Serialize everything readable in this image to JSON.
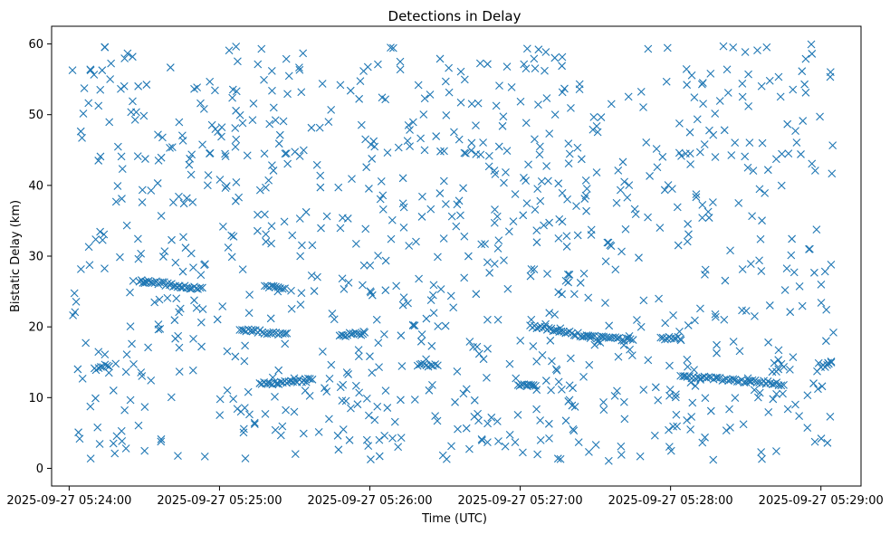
{
  "chart_data": {
    "type": "scatter",
    "title": "Detections in Delay",
    "xlabel": "Time (UTC)",
    "ylabel": "Bistatic Delay (km)",
    "marker": "x",
    "color": "#1f77b4",
    "grid": false,
    "legend": "none",
    "x_range": [
      "2025-09-27 05:23:53",
      "2025-09-27 05:29:16"
    ],
    "ylim": [
      -2.5,
      62.5
    ],
    "x_ticks": [
      {
        "value": "2025-09-27 05:24:00",
        "label": "2025-09-27 05:24:00"
      },
      {
        "value": "2025-09-27 05:25:00",
        "label": "2025-09-27 05:25:00"
      },
      {
        "value": "2025-09-27 05:26:00",
        "label": "2025-09-27 05:26:00"
      },
      {
        "value": "2025-09-27 05:27:00",
        "label": "2025-09-27 05:27:00"
      },
      {
        "value": "2025-09-27 05:28:00",
        "label": "2025-09-27 05:28:00"
      },
      {
        "value": "2025-09-27 05:29:00",
        "label": "2025-09-27 05:29:00"
      }
    ],
    "y_ticks": [
      0,
      10,
      20,
      30,
      40,
      50,
      60
    ],
    "tracks": [
      {
        "start": "2025-09-27 05:24:28",
        "end": "2025-09-27 05:24:53",
        "y_start": 26.5,
        "y_end": 25.4,
        "points": 34
      },
      {
        "start": "2025-09-27 05:25:08",
        "end": "2025-09-27 05:25:27",
        "y_start": 19.6,
        "y_end": 18.9,
        "points": 22
      },
      {
        "start": "2025-09-27 05:25:16",
        "end": "2025-09-27 05:25:37",
        "y_start": 11.9,
        "y_end": 12.5,
        "points": 26
      },
      {
        "start": "2025-09-27 05:25:18",
        "end": "2025-09-27 05:25:26",
        "y_start": 25.8,
        "y_end": 25.6,
        "points": 10
      },
      {
        "start": "2025-09-27 05:25:48",
        "end": "2025-09-27 05:25:58",
        "y_start": 18.8,
        "y_end": 19.1,
        "points": 14
      },
      {
        "start": "2025-09-27 05:26:19",
        "end": "2025-09-27 05:26:27",
        "y_start": 14.6,
        "y_end": 14.6,
        "points": 10
      },
      {
        "start": "2025-09-27 05:27:04",
        "end": "2025-09-27 05:27:28",
        "y_start": 20.2,
        "y_end": 18.6,
        "points": 30
      },
      {
        "start": "2025-09-27 05:27:28",
        "end": "2025-09-27 05:27:45",
        "y_start": 18.6,
        "y_end": 18.2,
        "points": 20
      },
      {
        "start": "2025-09-27 05:27:56",
        "end": "2025-09-27 05:28:04",
        "y_start": 18.4,
        "y_end": 18.5,
        "points": 10
      },
      {
        "start": "2025-09-27 05:28:04",
        "end": "2025-09-27 05:28:45",
        "y_start": 13.1,
        "y_end": 11.9,
        "points": 48
      },
      {
        "start": "2025-09-27 05:26:59",
        "end": "2025-09-27 05:27:06",
        "y_start": 11.7,
        "y_end": 11.8,
        "points": 9
      },
      {
        "start": "2025-09-27 05:24:10",
        "end": "2025-09-27 05:24:16",
        "y_start": 14.0,
        "y_end": 14.6,
        "points": 8
      },
      {
        "start": "2025-09-27 05:29:00",
        "end": "2025-09-27 05:29:04",
        "y_start": 14.4,
        "y_end": 14.8,
        "points": 6
      }
    ],
    "scattered": {
      "count": 950,
      "seed": 20250927,
      "x_start": "2025-09-27 05:24:00",
      "x_end": "2025-09-27 05:29:05",
      "y_min": 1,
      "y_max": 60
    }
  }
}
